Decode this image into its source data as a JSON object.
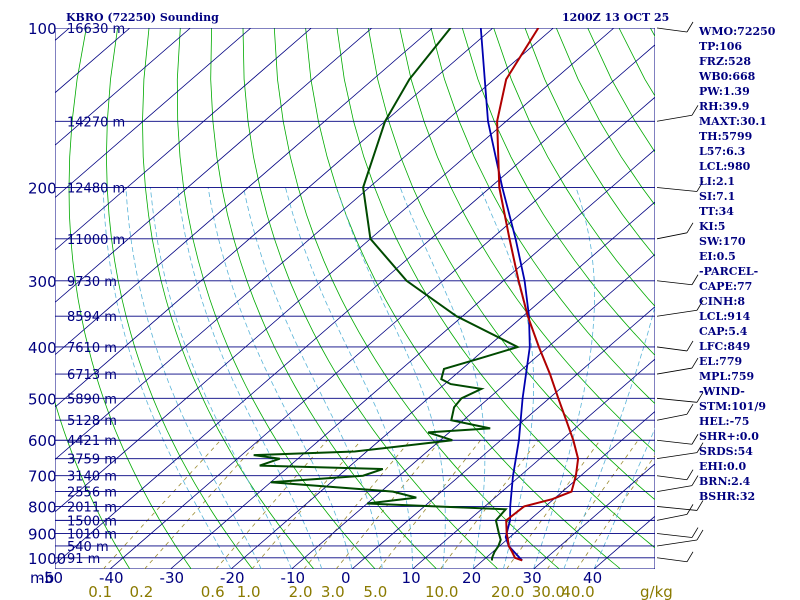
{
  "header": {
    "station": "KBRO (72250) Sounding",
    "time": "1200Z 13 OCT 25"
  },
  "footer": {
    "pressure_unit": "mb",
    "mixing_ratio_unit": "g/kg"
  },
  "colors": {
    "grid": "#000080",
    "dry_adiabat": "#00aa00",
    "moist_adiabat": "#5ab4d8",
    "mixing_ratio": "#9a8a30",
    "temperature": "#b00000",
    "dewpoint": "#004a00",
    "parcel": "#0000b0",
    "wind": "#000000"
  },
  "chart_data": {
    "type": "skew-t",
    "pressure_levels": [
      100,
      200,
      300,
      400,
      500,
      600,
      700,
      800,
      900,
      1000
    ],
    "height_levels": [
      {
        "p": 100,
        "label": "16630 m"
      },
      {
        "p": 150,
        "label": "14270 m"
      },
      {
        "p": 200,
        "label": "12480 m"
      },
      {
        "p": 250,
        "label": "11000 m"
      },
      {
        "p": 300,
        "label": "9730 m"
      },
      {
        "p": 350,
        "label": "8594 m"
      },
      {
        "p": 400,
        "label": "7610 m"
      },
      {
        "p": 450,
        "label": "6713 m"
      },
      {
        "p": 500,
        "label": "5890 m"
      },
      {
        "p": 550,
        "label": "5128 m"
      },
      {
        "p": 600,
        "label": "4421 m"
      },
      {
        "p": 650,
        "label": "3759 m"
      },
      {
        "p": 700,
        "label": "3140 m"
      },
      {
        "p": 750,
        "label": "2556 m"
      },
      {
        "p": 800,
        "label": "2011 m"
      },
      {
        "p": 850,
        "label": "1500 m"
      },
      {
        "p": 900,
        "label": "1010 m"
      },
      {
        "p": 950,
        "label": "540 m"
      },
      {
        "p": 1000,
        "label": "91 m"
      }
    ],
    "temperature_ticks": [
      -50,
      -40,
      -30,
      -20,
      -10,
      0,
      10,
      20,
      30,
      40
    ],
    "mixing_ratio_ticks": [
      "0.1",
      "0.2",
      "0.6",
      "1.0",
      "2.0",
      "3.0",
      "5.0",
      "10.0",
      "20.0",
      "30.0",
      "40.0"
    ],
    "temperature": [
      [
        1012,
        26.5
      ],
      [
        1000,
        24.8
      ],
      [
        975,
        23.2
      ],
      [
        950,
        21.5
      ],
      [
        925,
        20.2
      ],
      [
        900,
        18.8
      ],
      [
        850,
        16.2
      ],
      [
        800,
        16.5
      ],
      [
        775,
        19.8
      ],
      [
        750,
        21.5
      ],
      [
        700,
        19.2
      ],
      [
        650,
        16.3
      ],
      [
        600,
        12.0
      ],
      [
        550,
        7.0
      ],
      [
        500,
        1.5
      ],
      [
        450,
        -4.5
      ],
      [
        400,
        -11.5
      ],
      [
        350,
        -19.2
      ],
      [
        300,
        -27.5
      ],
      [
        250,
        -37.0
      ],
      [
        200,
        -48.5
      ],
      [
        150,
        -61.5
      ],
      [
        125,
        -68.0
      ],
      [
        100,
        -72.5
      ]
    ],
    "dewpoint": [
      [
        1012,
        21.5
      ],
      [
        1000,
        21.0
      ],
      [
        975,
        20.3
      ],
      [
        950,
        19.8
      ],
      [
        925,
        19.0
      ],
      [
        900,
        17.5
      ],
      [
        850,
        14.5
      ],
      [
        810,
        14.0
      ],
      [
        790,
        -10.0
      ],
      [
        770,
        -3.0
      ],
      [
        750,
        -8.0
      ],
      [
        720,
        -30.0
      ],
      [
        700,
        -16.0
      ],
      [
        680,
        -14.0
      ],
      [
        670,
        -35.0
      ],
      [
        650,
        -33.0
      ],
      [
        640,
        -38.0
      ],
      [
        630,
        -22.0
      ],
      [
        600,
        -8.0
      ],
      [
        580,
        -13.5
      ],
      [
        570,
        -4.0
      ],
      [
        550,
        -12.0
      ],
      [
        520,
        -14.0
      ],
      [
        500,
        -14.5
      ],
      [
        480,
        -13.0
      ],
      [
        470,
        -19.0
      ],
      [
        460,
        -21.5
      ],
      [
        440,
        -23.0
      ],
      [
        420,
        -19.0
      ],
      [
        400,
        -15.0
      ],
      [
        350,
        -31.0
      ],
      [
        300,
        -46.0
      ],
      [
        250,
        -60.0
      ],
      [
        200,
        -71.0
      ],
      [
        150,
        -80.0
      ],
      [
        125,
        -84.0
      ],
      [
        100,
        -87.0
      ]
    ],
    "parcel": [
      [
        1012,
        26.5
      ],
      [
        950,
        21.5
      ],
      [
        914,
        19.3
      ],
      [
        849,
        16.8
      ],
      [
        800,
        14.2
      ],
      [
        700,
        8.8
      ],
      [
        600,
        3.0
      ],
      [
        500,
        -4.4
      ],
      [
        400,
        -13.0
      ],
      [
        350,
        -19.0
      ],
      [
        300,
        -26.5
      ],
      [
        250,
        -36.0
      ],
      [
        200,
        -48.0
      ],
      [
        150,
        -63.0
      ],
      [
        100,
        -82.0
      ]
    ],
    "wind_levels": [
      100,
      150,
      200,
      250,
      300,
      350,
      400,
      450,
      500,
      550,
      600,
      650,
      700,
      750,
      800,
      850,
      900,
      950,
      1000
    ]
  },
  "indices": [
    "WMO:72250",
    "TP:106",
    "FRZ:528",
    "WB0:668",
    "PW:1.39",
    "RH:39.9",
    "MAXT:30.1",
    "TH:5799",
    "L57:6.3",
    "LCL:980",
    "LI:2.1",
    "SI:7.1",
    "TT:34",
    "KI:5",
    "SW:170",
    "EI:0.5",
    "-PARCEL-",
    "CAPE:77",
    "CINH:8",
    "LCL:914",
    "CAP:5.4",
    "LFC:849",
    "EL:779",
    "MPL:759",
    "-WIND-",
    "STM:101/9",
    "HEL:-75",
    "SHR+:0.0",
    "SRDS:54",
    "EHI:0.0",
    "BRN:2.4",
    "BSHR:32"
  ]
}
